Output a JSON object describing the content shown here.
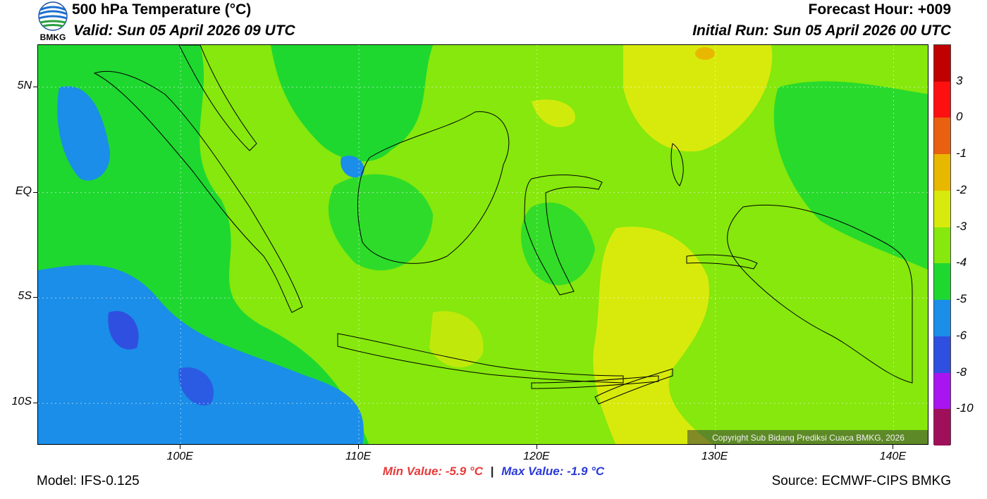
{
  "header": {
    "title": "500 hPa Temperature (°C)",
    "valid": "Valid: Sun 05 April 2026 09 UTC",
    "forecast_hour": "Forecast Hour: +009",
    "initial_run": "Initial Run: Sun 05 April 2026 00 UTC",
    "logo_text": "BMKG"
  },
  "map": {
    "lat_labels": [
      "5N",
      "EQ",
      "5S",
      "10S"
    ],
    "lon_labels": [
      "100E",
      "110E",
      "120E",
      "130E",
      "140E"
    ],
    "lat_values": [
      5,
      0,
      -5,
      -10
    ],
    "lon_values": [
      100,
      110,
      120,
      130,
      140
    ],
    "extent": {
      "lon_min": 92,
      "lon_max": 142,
      "lat_min": -12,
      "lat_max": 7
    },
    "copyright": "Copyright Sub Bidang Prediksi Cuaca BMKG, 2026"
  },
  "colorbar": {
    "labels": [
      "3",
      "0",
      "-1",
      "-2",
      "-3",
      "-4",
      "-5",
      "-6",
      "-8",
      "-10"
    ],
    "colors": [
      "#c00000",
      "#ff1010",
      "#e86010",
      "#e8b800",
      "#d8ea0c",
      "#86e80c",
      "#1ed830",
      "#1a8ee8",
      "#2f4fe0",
      "#a815f0",
      "#a0105a"
    ]
  },
  "footer": {
    "model": "Model: IFS-0.125",
    "source": "Source: ECMWF-CIPS BMKG",
    "min_value": "Min Value: -5.9 °C",
    "separator": "|",
    "max_value": "Max Value: -1.9 °C"
  }
}
